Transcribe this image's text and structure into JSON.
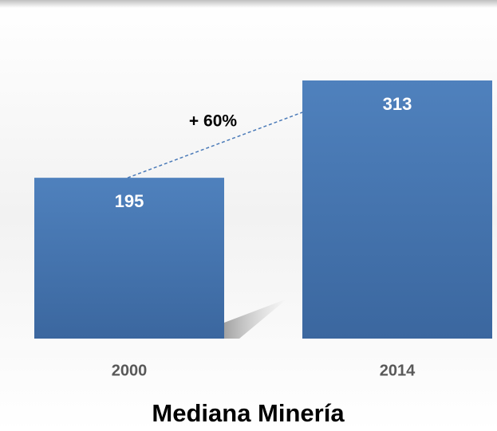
{
  "chart_data": {
    "type": "bar",
    "title": "Mediana Minería",
    "categories": [
      "2000",
      "2014"
    ],
    "values": [
      195,
      313
    ],
    "color": "#4a7ab8",
    "annotation": "+ 60%"
  }
}
